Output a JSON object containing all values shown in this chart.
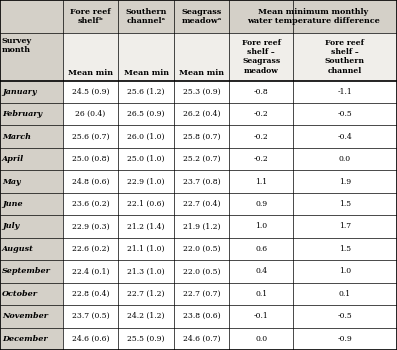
{
  "months": [
    "January",
    "February",
    "March",
    "April",
    "May",
    "June",
    "July",
    "August",
    "September",
    "October",
    "November",
    "December"
  ],
  "fore_reef": [
    "24.5 (0.9)",
    "26 (0.4)",
    "25.6 (0.7)",
    "25.0 (0.8)",
    "24.8 (0.6)",
    "23.6 (0.2)",
    "22.9 (0.3)",
    "22.6 (0.2)",
    "22.4 (0.1)",
    "22.8 (0.4)",
    "23.7 (0.5)",
    "24.6 (0.6)"
  ],
  "southern": [
    "25.6 (1.2)",
    "26.5 (0.9)",
    "26.0 (1.0)",
    "25.0 (1.0)",
    "22.9 (1.0)",
    "22.1 (0.6)",
    "21.2 (1.4)",
    "21.1 (1.0)",
    "21.3 (1.0)",
    "22.7 (1.2)",
    "24.2 (1.2)",
    "25.5 (0.9)"
  ],
  "seagrass": [
    "25.3 (0.9)",
    "26.2 (0.4)",
    "25.8 (0.7)",
    "25.2 (0.7)",
    "23.7 (0.8)",
    "22.7 (0.4)",
    "21.9 (1.2)",
    "22.0 (0.5)",
    "22.0 (0.5)",
    "22.7 (0.7)",
    "23.8 (0.6)",
    "24.6 (0.7)"
  ],
  "diff_seagrass": [
    "-0.8",
    "-0.2",
    "-0.2",
    "-0.2",
    "1.1",
    "0.9",
    "1.0",
    "0.6",
    "0.4",
    "0.1",
    "-0.1",
    "0.0"
  ],
  "diff_southern": [
    "-1.1",
    "-0.5",
    "-0.4",
    "0.0",
    "1.9",
    "1.5",
    "1.7",
    "1.5",
    "1.0",
    "0.1",
    "-0.5",
    "-0.9"
  ],
  "col_h1": "Fore reef\nshelfᵇ",
  "col_h2": "Southern\nchannelᵃ",
  "col_h3": "Seagrass\nmeadowᵃ",
  "col_h4": "Mean minimum monthly\nwater temperature difference",
  "sub_mean": "Mean min",
  "sub_h4a": "Fore reef\nshelf –\nSeagrass\nmeadow",
  "sub_h4b": "Fore reef\nshelf –\nSouthern\nchannel",
  "row_header": "Survey\nmonth",
  "bg_color": "#d4d0c8",
  "header_bg": "#d4d0c8",
  "white_bg": "#f0eeea",
  "line_color": "#000000"
}
